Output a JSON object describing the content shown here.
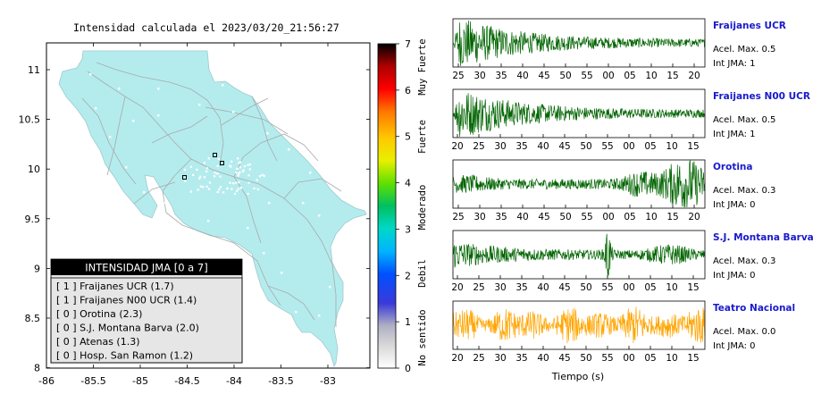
{
  "map": {
    "title": "Intensidad calculada el 2023/03/20_21:56:27",
    "x_ticks": [
      "-86",
      "-85.5",
      "-85",
      "-84.5",
      "-84",
      "-83.5",
      "-83"
    ],
    "y_ticks": [
      "11",
      "10.5",
      "10",
      "9.5",
      "9",
      "8.5",
      "8"
    ],
    "land_color": "#b4ecee"
  },
  "colorbar": {
    "ticks": [
      "7",
      "6",
      "5",
      "4",
      "3",
      "2",
      "1",
      "0"
    ],
    "labels": [
      "Muy Fuerte",
      "Fuerte",
      "Moderado",
      "Debil",
      "No sentido"
    ]
  },
  "legend": {
    "title": "INTENSIDAD JMA [0 a 7]",
    "items": [
      {
        "label": "[ 1 ]  Fraijanes UCR (1.7)"
      },
      {
        "label": "[ 1 ]  Fraijanes N00 UCR (1.4)"
      },
      {
        "label": "[ 0 ]  Orotina (2.3)"
      },
      {
        "label": "[ 0 ]  S.J. Montana Barva (2.0)"
      },
      {
        "label": "[ 0 ]  Atenas (1.3)"
      },
      {
        "label": "[ 0 ]  Hosp. San Ramon (1.2)"
      }
    ]
  },
  "chart_data": [
    {
      "type": "line",
      "station": "Fraijanes UCR",
      "accel": "Acel. Max. 0.5",
      "jma": "Int JMA: 1",
      "x_ticks": [
        "25",
        "30",
        "35",
        "40",
        "45",
        "50",
        "55",
        "00",
        "05",
        "10",
        "15",
        "20"
      ],
      "color": "#006400",
      "envelope": "decay"
    },
    {
      "type": "line",
      "station": "Fraijanes N00 UCR",
      "accel": "Acel. Max. 0.5",
      "jma": "Int JMA: 1",
      "x_ticks": [
        "20",
        "25",
        "30",
        "35",
        "40",
        "45",
        "50",
        "55",
        "00",
        "05",
        "10",
        "15"
      ],
      "color": "#006400",
      "envelope": "decay"
    },
    {
      "type": "line",
      "station": "Orotina",
      "accel": "Acel. Max. 0.3",
      "jma": "Int JMA: 0",
      "x_ticks": [
        "25",
        "30",
        "35",
        "40",
        "45",
        "50",
        "55",
        "00",
        "05",
        "10",
        "15",
        "20"
      ],
      "color": "#006400",
      "envelope": "late"
    },
    {
      "type": "line",
      "station": "S.J. Montana Barva",
      "accel": "Acel. Max. 0.3",
      "jma": "Int JMA: 0",
      "x_ticks": [
        "20",
        "25",
        "30",
        "35",
        "40",
        "45",
        "50",
        "55",
        "00",
        "05",
        "10",
        "15"
      ],
      "color": "#006400",
      "envelope": "spike"
    },
    {
      "type": "line",
      "station": "Teatro Nacional",
      "accel": "Acel. Max. 0.0",
      "jma": "Int JMA: 0",
      "x_ticks": [
        "20",
        "25",
        "30",
        "35",
        "40",
        "45",
        "50",
        "55",
        "00",
        "05",
        "10",
        "15"
      ],
      "color": "#ffa500",
      "envelope": "noise"
    }
  ],
  "xlabel": "Tiempo (s)"
}
